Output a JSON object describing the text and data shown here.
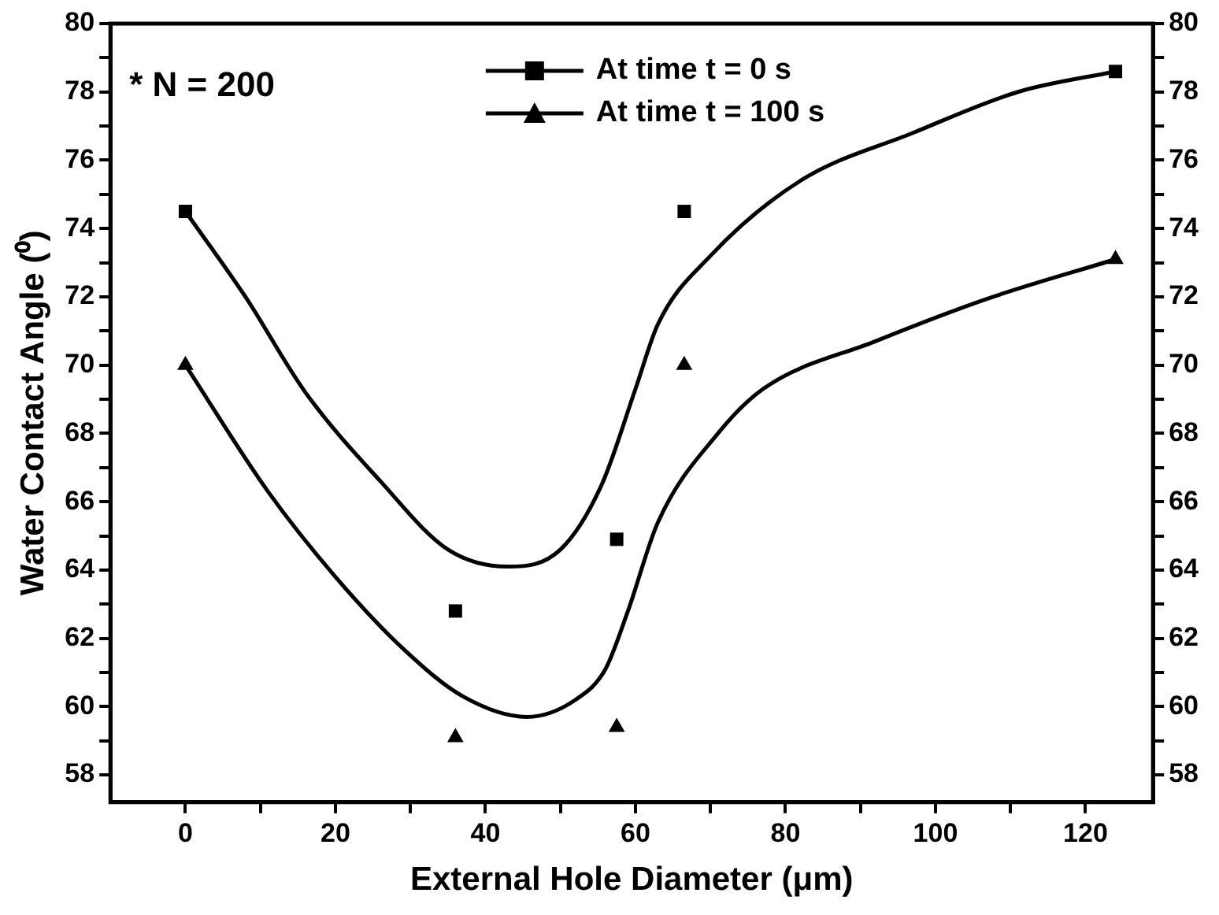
{
  "chart_data": {
    "type": "scatter",
    "xlabel": "External Hole Diameter (μm)",
    "ylabel": "Water Contact Angle (⁰)",
    "xlim": [
      -10,
      129
    ],
    "xticks": [
      0,
      {
        "value": 10,
        "label": null
      },
      20,
      {
        "value": 30,
        "label": null
      },
      40,
      {
        "value": 50,
        "label": null
      },
      60,
      {
        "value": 70,
        "label": null
      },
      80,
      {
        "value": 90,
        "label": null
      },
      100,
      {
        "value": 110,
        "label": null
      },
      120
    ],
    "ylim": [
      57.2,
      80
    ],
    "yticks": [
      58,
      {
        "value": 59,
        "label": null
      },
      60,
      {
        "value": 61,
        "label": null
      },
      62,
      {
        "value": 63,
        "label": null
      },
      64,
      {
        "value": 65,
        "label": null
      },
      66,
      {
        "value": 67,
        "label": null
      },
      68,
      {
        "value": 69,
        "label": null
      },
      70,
      {
        "value": 71,
        "label": null
      },
      72,
      {
        "value": 73,
        "label": null
      },
      74,
      {
        "value": 75,
        "label": null
      },
      76,
      {
        "value": 77,
        "label": null
      },
      78,
      {
        "value": 79,
        "label": null
      },
      80
    ],
    "y2lim": [
      57.2,
      80
    ],
    "y2ticks": [
      58,
      {
        "value": 59,
        "label": null
      },
      60,
      {
        "value": 61,
        "label": null
      },
      62,
      {
        "value": 63,
        "label": null
      },
      64,
      {
        "value": 65,
        "label": null
      },
      66,
      {
        "value": 67,
        "label": null
      },
      68,
      {
        "value": 69,
        "label": null
      },
      70,
      {
        "value": 71,
        "label": null
      },
      72,
      {
        "value": 73,
        "label": null
      },
      74,
      {
        "value": 75,
        "label": null
      },
      76,
      {
        "value": 77,
        "label": null
      },
      78,
      {
        "value": 79,
        "label": null
      },
      80
    ],
    "legend": "top",
    "grid": false,
    "annotations": [
      "* N = 200"
    ],
    "series": [
      {
        "name": "At time t = 0 s",
        "marker": "square",
        "color": "#000000",
        "x": [
          0,
          36,
          57.5,
          66.5,
          124
        ],
        "values": [
          74.5,
          62.8,
          64.9,
          74.5,
          78.6
        ]
      },
      {
        "name": "At time t = 100 s",
        "marker": "triangle",
        "color": "#000000",
        "x": [
          0,
          36,
          57.5,
          66.5,
          124
        ],
        "values": [
          70.0,
          59.1,
          59.4,
          70.0,
          73.1
        ]
      },
      {
        "type": "line",
        "marker": "none",
        "color": "#000000",
        "x": [
          0,
          8,
          16,
          26,
          35,
          43,
          50,
          55.5,
          60,
          63,
          70,
          82,
          97,
          111,
          124
        ],
        "values": [
          74.5,
          72.0,
          69.2,
          66.6,
          64.6,
          64.1,
          64.6,
          66.5,
          69.3,
          71.2,
          73.2,
          75.4,
          76.8,
          78.0,
          78.6
        ]
      },
      {
        "type": "line",
        "marker": "none",
        "color": "#000000",
        "x": [
          0,
          11,
          20,
          29,
          37,
          45.5,
          52,
          56,
          59,
          63,
          71,
          77,
          92,
          107,
          124
        ],
        "values": [
          70.0,
          66.3,
          63.8,
          61.7,
          60.3,
          59.7,
          60.2,
          61.1,
          62.8,
          65.4,
          68.0,
          69.3,
          70.7,
          71.95,
          73.1
        ]
      }
    ]
  }
}
